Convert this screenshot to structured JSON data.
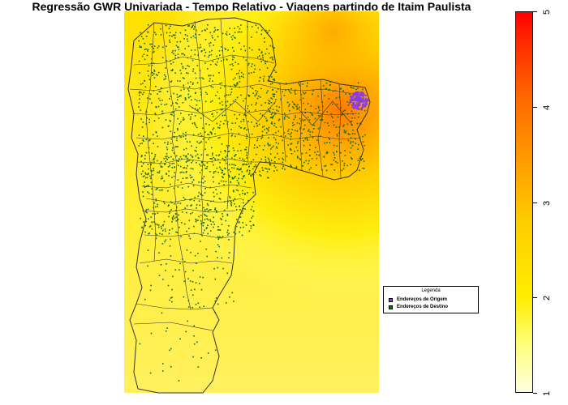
{
  "title": "Regressão GWR Univariada - Tempo Relativo - Viagens partindo de Itaim Paulista",
  "legend": {
    "title": "Legenda",
    "entries": [
      {
        "label": "Endereços de Origem",
        "color": "#8a3ce0"
      },
      {
        "label": "Endereços de Destino",
        "color": "#1a6b1a"
      }
    ]
  },
  "color_scale": {
    "ticks": [
      "1",
      "2",
      "3",
      "4",
      "5"
    ],
    "min": 1,
    "max": 5
  },
  "colors": {
    "background_low": "#ffffe0",
    "background_mid": "#ffee00",
    "hotspot": "#ff9900",
    "district_border": "#333333",
    "origin_points": "#8a3ce0",
    "destination_points": "#1a6b1a"
  }
}
